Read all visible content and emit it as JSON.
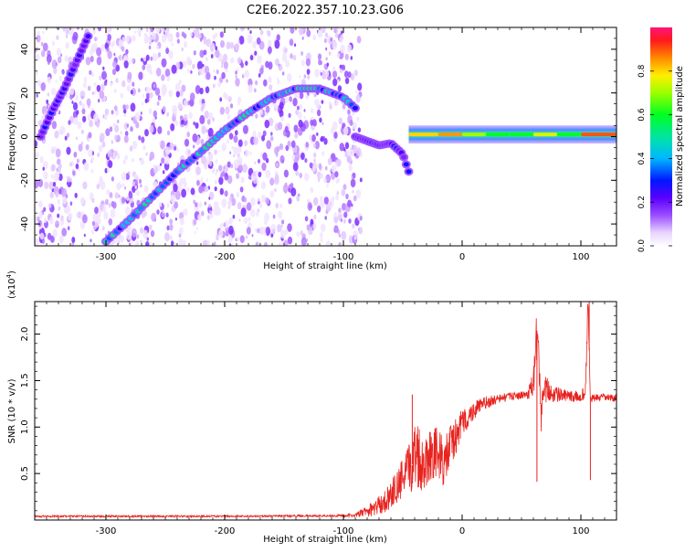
{
  "figure_title": "C2E6.2022.357.10.23.G06",
  "colorbar": {
    "label": "Normalized spectral amplitude",
    "ticks": [
      "0.0",
      "0.2",
      "0.4",
      "0.6",
      "0.8"
    ]
  },
  "chart_data": [
    {
      "type": "heatmap",
      "title": "",
      "xlabel": "Height of straight line (km)",
      "ylabel": "Frequency (Hz)",
      "xlim": [
        -360,
        130
      ],
      "ylim": [
        -50,
        50
      ],
      "xticks": [
        -300,
        -200,
        -100,
        0,
        100
      ],
      "yticks": [
        -40,
        -20,
        0,
        20,
        40
      ],
      "value_range": [
        0,
        1
      ],
      "noise_region_x": [
        -360,
        -85
      ],
      "features": [
        {
          "name": "main doppler arc",
          "x": [
            -300,
            -280,
            -260,
            -240,
            -220,
            -200,
            -180,
            -160,
            -140,
            -120,
            -100,
            -90
          ],
          "y": [
            -48,
            -38,
            -27,
            -16,
            -7,
            3,
            11,
            18,
            22,
            22,
            18,
            13
          ]
        },
        {
          "name": "steep streak",
          "x": [
            -355,
            -345,
            -335,
            -325,
            -315
          ],
          "y": [
            0,
            12,
            22,
            34,
            46
          ]
        },
        {
          "name": "lower branch",
          "x": [
            -90,
            -80,
            -70,
            -60,
            -50,
            -45
          ],
          "y": [
            0,
            -2,
            -4,
            -3,
            -8,
            -16
          ]
        },
        {
          "name": "carrier band",
          "x": [
            -45,
            -20,
            0,
            20,
            40,
            60,
            80,
            100,
            130
          ],
          "y": [
            0,
            0,
            1,
            1,
            1,
            1,
            1,
            1,
            1
          ],
          "peak_amplitude": [
            0.8,
            0.85,
            0.7,
            0.6,
            0.6,
            0.75,
            0.6,
            0.9,
            0.55
          ]
        }
      ]
    },
    {
      "type": "line",
      "title": "",
      "xlabel": "Height of straight line (km)",
      "ylabel": "SNR (10 * v/v)",
      "multiplier_label": "(x10",
      "multiplier_exp": "4",
      "xlim": [
        -360,
        130
      ],
      "ylim": [
        0,
        23500
      ],
      "xticks": [
        -300,
        -200,
        -100,
        0,
        100
      ],
      "yticks": [
        {
          "value": 5000,
          "label": "0.5"
        },
        {
          "value": 10000,
          "label": "1.0"
        },
        {
          "value": 15000,
          "label": "1.5"
        },
        {
          "value": 20000,
          "label": "2.0"
        }
      ],
      "series": [
        {
          "color": "#e8231f",
          "x": [
            -360,
            -300,
            -200,
            -120,
            -90,
            -75,
            -65,
            -55,
            -48,
            -42,
            -38,
            -35,
            -30,
            -25,
            -20,
            -15,
            -10,
            -5,
            0,
            5,
            10,
            15,
            20,
            30,
            40,
            50,
            55,
            60,
            62,
            64,
            66,
            70,
            80,
            90,
            100,
            104,
            106,
            108,
            110,
            120,
            130
          ],
          "y": [
            400,
            400,
            400,
            450,
            500,
            1200,
            2000,
            3500,
            4800,
            6000,
            8000,
            6000,
            6500,
            7500,
            7000,
            6000,
            8000,
            9000,
            10500,
            11000,
            11800,
            12300,
            12600,
            13000,
            13300,
            13400,
            13500,
            14500,
            18000,
            22700,
            11000,
            14000,
            13500,
            13300,
            13200,
            14000,
            23500,
            13000,
            13100,
            13200,
            13100
          ],
          "noise_amplitude": [
            100,
            100,
            100,
            100,
            200,
            800,
            1200,
            1800,
            2500,
            3000,
            4500,
            3000,
            3000,
            3000,
            3000,
            2500,
            2500,
            2000,
            1500,
            1200,
            1000,
            800,
            700,
            500,
            400,
            400,
            500,
            1500,
            2500,
            3000,
            2000,
            1500,
            800,
            600,
            600,
            800,
            2000,
            600,
            400,
            400,
            400
          ],
          "spikes": [
            {
              "x": -42,
              "y": 13500
            },
            {
              "x": 63,
              "y": 4100
            },
            {
              "x": 64,
              "y": 22700
            },
            {
              "x": 107,
              "y": 23500
            },
            {
              "x": 108,
              "y": 4300
            }
          ]
        }
      ]
    }
  ]
}
